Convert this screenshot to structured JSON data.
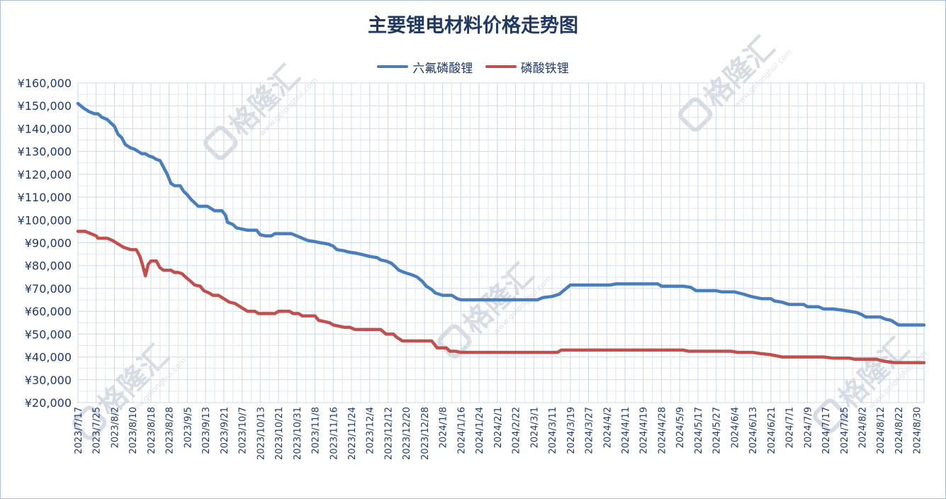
{
  "chart_data": {
    "type": "line",
    "title": "主要锂电材料价格走势图",
    "xlabel": "",
    "ylabel": "",
    "ylim": [
      20000,
      160000
    ],
    "y_ticks": [
      "¥160,000",
      "¥150,000",
      "¥140,000",
      "¥130,000",
      "¥120,000",
      "¥110,000",
      "¥100,000",
      "¥90,000",
      "¥80,000",
      "¥70,000",
      "¥60,000",
      "¥50,000",
      "¥40,000",
      "¥30,000",
      "¥20,000"
    ],
    "x_tick_labels": [
      "2023/7/17",
      "2023/7/25",
      "2023/8/2",
      "2023/8/10",
      "2023/8/18",
      "2023/8/28",
      "2023/9/5",
      "2023/9/13",
      "2023/9/21",
      "2023/10/7",
      "2023/10/13",
      "2023/10/21",
      "2023/10/31",
      "2023/11/8",
      "2023/11/16",
      "2023/11/24",
      "2023/12/4",
      "2023/12/12",
      "2023/12/20",
      "2023/12/28",
      "2024/1/8",
      "2024/1/16",
      "2024/1/24",
      "2024/2/1",
      "2024/2/22",
      "2024/3/1",
      "2024/3/11",
      "2024/3/19",
      "2024/3/27",
      "2024/4/2",
      "2024/4/11",
      "2024/4/19",
      "2024/4/28",
      "2024/5/9",
      "2024/5/17",
      "2024/5/27",
      "2024/6/4",
      "2024/6/13",
      "2024/6/21",
      "2024/7/1",
      "2024/7/9",
      "2024/7/17",
      "2024/7/25",
      "2024/8/2",
      "2024/8/12",
      "2024/8/22",
      "2024/8/30"
    ],
    "x_index_range": [
      0,
      46.4
    ],
    "grid": true,
    "legend_position": "top-center",
    "series": [
      {
        "name": "六氟磷酸锂",
        "color": "#4a7ebb",
        "points": [
          [
            0,
            151000
          ],
          [
            0.3,
            149000
          ],
          [
            0.6,
            147500
          ],
          [
            0.9,
            146500
          ],
          [
            1.1,
            146500
          ],
          [
            1.3,
            145000
          ],
          [
            1.6,
            144000
          ],
          [
            1.8,
            142500
          ],
          [
            2.0,
            141000
          ],
          [
            2.2,
            137500
          ],
          [
            2.4,
            136000
          ],
          [
            2.6,
            133000
          ],
          [
            2.9,
            131500
          ],
          [
            3.1,
            131000
          ],
          [
            3.3,
            130000
          ],
          [
            3.5,
            129000
          ],
          [
            3.7,
            129000
          ],
          [
            3.9,
            128000
          ],
          [
            4.1,
            127500
          ],
          [
            4.3,
            126500
          ],
          [
            4.5,
            126000
          ],
          [
            4.7,
            123000
          ],
          [
            4.9,
            120000
          ],
          [
            5.1,
            116000
          ],
          [
            5.3,
            115000
          ],
          [
            5.6,
            115000
          ],
          [
            5.8,
            112500
          ],
          [
            6.0,
            111000
          ],
          [
            6.2,
            109000
          ],
          [
            6.4,
            107500
          ],
          [
            6.6,
            106000
          ],
          [
            6.8,
            106000
          ],
          [
            7.1,
            106000
          ],
          [
            7.3,
            105000
          ],
          [
            7.5,
            104000
          ],
          [
            7.9,
            104000
          ],
          [
            8.1,
            102000
          ],
          [
            8.2,
            99000
          ],
          [
            8.5,
            98000
          ],
          [
            8.7,
            96500
          ],
          [
            9.0,
            96000
          ],
          [
            9.3,
            95500
          ],
          [
            9.8,
            95500
          ],
          [
            10.0,
            93500
          ],
          [
            10.3,
            93000
          ],
          [
            10.6,
            93000
          ],
          [
            10.8,
            94000
          ],
          [
            11.7,
            94000
          ],
          [
            12.0,
            93000
          ],
          [
            12.3,
            92000
          ],
          [
            12.6,
            91000
          ],
          [
            13.0,
            90500
          ],
          [
            13.3,
            90000
          ],
          [
            13.7,
            89500
          ],
          [
            14.0,
            88500
          ],
          [
            14.2,
            87000
          ],
          [
            14.6,
            86500
          ],
          [
            14.8,
            86000
          ],
          [
            15.2,
            85500
          ],
          [
            15.5,
            85000
          ],
          [
            16.0,
            84000
          ],
          [
            16.4,
            83500
          ],
          [
            16.6,
            82500
          ],
          [
            16.9,
            82000
          ],
          [
            17.2,
            81000
          ],
          [
            17.4,
            79500
          ],
          [
            17.6,
            78000
          ],
          [
            17.9,
            77000
          ],
          [
            18.3,
            76000
          ],
          [
            18.6,
            75000
          ],
          [
            18.9,
            73000
          ],
          [
            19.1,
            71000
          ],
          [
            19.4,
            69500
          ],
          [
            19.6,
            68000
          ],
          [
            20.0,
            67000
          ],
          [
            20.5,
            67000
          ],
          [
            20.8,
            65500
          ],
          [
            21.0,
            65000
          ],
          [
            25.2,
            65000
          ],
          [
            25.5,
            66000
          ],
          [
            26.0,
            66500
          ],
          [
            26.4,
            67500
          ],
          [
            26.7,
            69500
          ],
          [
            27.0,
            71500
          ],
          [
            28.6,
            71500
          ],
          [
            29.2,
            71500
          ],
          [
            29.5,
            72000
          ],
          [
            31.8,
            72000
          ],
          [
            32.0,
            71000
          ],
          [
            33.2,
            71000
          ],
          [
            33.6,
            70500
          ],
          [
            33.9,
            69000
          ],
          [
            35.0,
            69000
          ],
          [
            35.3,
            68500
          ],
          [
            36.0,
            68500
          ],
          [
            36.5,
            67500
          ],
          [
            36.9,
            66500
          ],
          [
            37.2,
            66000
          ],
          [
            37.5,
            65500
          ],
          [
            38.0,
            65500
          ],
          [
            38.2,
            64500
          ],
          [
            38.6,
            64000
          ],
          [
            39.0,
            63000
          ],
          [
            39.4,
            63000
          ],
          [
            39.8,
            63000
          ],
          [
            40.0,
            62000
          ],
          [
            40.3,
            62000
          ],
          [
            40.6,
            62000
          ],
          [
            40.9,
            61000
          ],
          [
            41.4,
            61000
          ],
          [
            41.9,
            60500
          ],
          [
            42.3,
            60000
          ],
          [
            42.7,
            59500
          ],
          [
            43.0,
            58500
          ],
          [
            43.2,
            57500
          ],
          [
            44.0,
            57500
          ],
          [
            44.3,
            56500
          ],
          [
            44.6,
            56000
          ],
          [
            44.8,
            55000
          ],
          [
            45.0,
            54000
          ],
          [
            46.4,
            54000
          ]
        ]
      },
      {
        "name": "磷酸铁锂",
        "color": "#c0504d",
        "points": [
          [
            0,
            95000
          ],
          [
            0.4,
            95000
          ],
          [
            0.7,
            94000
          ],
          [
            1.0,
            93000
          ],
          [
            1.1,
            92000
          ],
          [
            1.6,
            92000
          ],
          [
            1.9,
            91000
          ],
          [
            2.2,
            89500
          ],
          [
            2.5,
            88000
          ],
          [
            2.9,
            87000
          ],
          [
            3.2,
            87000
          ],
          [
            3.4,
            84000
          ],
          [
            3.55,
            80000
          ],
          [
            3.7,
            75500
          ],
          [
            3.85,
            80500
          ],
          [
            4.0,
            82000
          ],
          [
            4.3,
            82000
          ],
          [
            4.5,
            79000
          ],
          [
            4.7,
            78000
          ],
          [
            5.1,
            78000
          ],
          [
            5.3,
            77000
          ],
          [
            5.5,
            77000
          ],
          [
            5.7,
            76500
          ],
          [
            5.9,
            75000
          ],
          [
            6.2,
            73000
          ],
          [
            6.4,
            71500
          ],
          [
            6.7,
            71000
          ],
          [
            6.9,
            69000
          ],
          [
            7.2,
            68000
          ],
          [
            7.4,
            67000
          ],
          [
            7.7,
            67000
          ],
          [
            7.9,
            66000
          ],
          [
            8.1,
            65000
          ],
          [
            8.3,
            64000
          ],
          [
            8.6,
            63500
          ],
          [
            8.8,
            62500
          ],
          [
            9.1,
            61000
          ],
          [
            9.3,
            60000
          ],
          [
            9.7,
            60000
          ],
          [
            9.9,
            59000
          ],
          [
            10.8,
            59000
          ],
          [
            11.0,
            60000
          ],
          [
            11.6,
            60000
          ],
          [
            11.8,
            59000
          ],
          [
            12.1,
            59000
          ],
          [
            12.3,
            58000
          ],
          [
            13.0,
            58000
          ],
          [
            13.2,
            56000
          ],
          [
            13.5,
            55500
          ],
          [
            13.8,
            55000
          ],
          [
            14.0,
            54000
          ],
          [
            14.3,
            53500
          ],
          [
            14.6,
            53000
          ],
          [
            14.9,
            53000
          ],
          [
            15.2,
            52000
          ],
          [
            16.6,
            52000
          ],
          [
            16.9,
            50000
          ],
          [
            17.3,
            50000
          ],
          [
            17.5,
            48500
          ],
          [
            17.8,
            47000
          ],
          [
            19.4,
            47000
          ],
          [
            19.7,
            44000
          ],
          [
            20.2,
            44000
          ],
          [
            20.4,
            42500
          ],
          [
            20.7,
            42500
          ],
          [
            21.0,
            42000
          ],
          [
            26.3,
            42000
          ],
          [
            26.5,
            43000
          ],
          [
            32.6,
            43000
          ],
          [
            33.2,
            43000
          ],
          [
            33.5,
            42500
          ],
          [
            35.8,
            42500
          ],
          [
            36.2,
            42000
          ],
          [
            37.0,
            42000
          ],
          [
            37.4,
            41500
          ],
          [
            38.0,
            41000
          ],
          [
            38.6,
            40000
          ],
          [
            40.9,
            40000
          ],
          [
            41.4,
            39500
          ],
          [
            42.3,
            39500
          ],
          [
            42.6,
            39000
          ],
          [
            43.8,
            39000
          ],
          [
            44.0,
            38500
          ],
          [
            44.3,
            38000
          ],
          [
            44.8,
            37500
          ],
          [
            46.4,
            37500
          ]
        ]
      }
    ]
  },
  "watermark": {
    "brand": "格隆汇",
    "url": "www.gelonghui.com",
    "icon": "gelonghui-logo-icon"
  }
}
